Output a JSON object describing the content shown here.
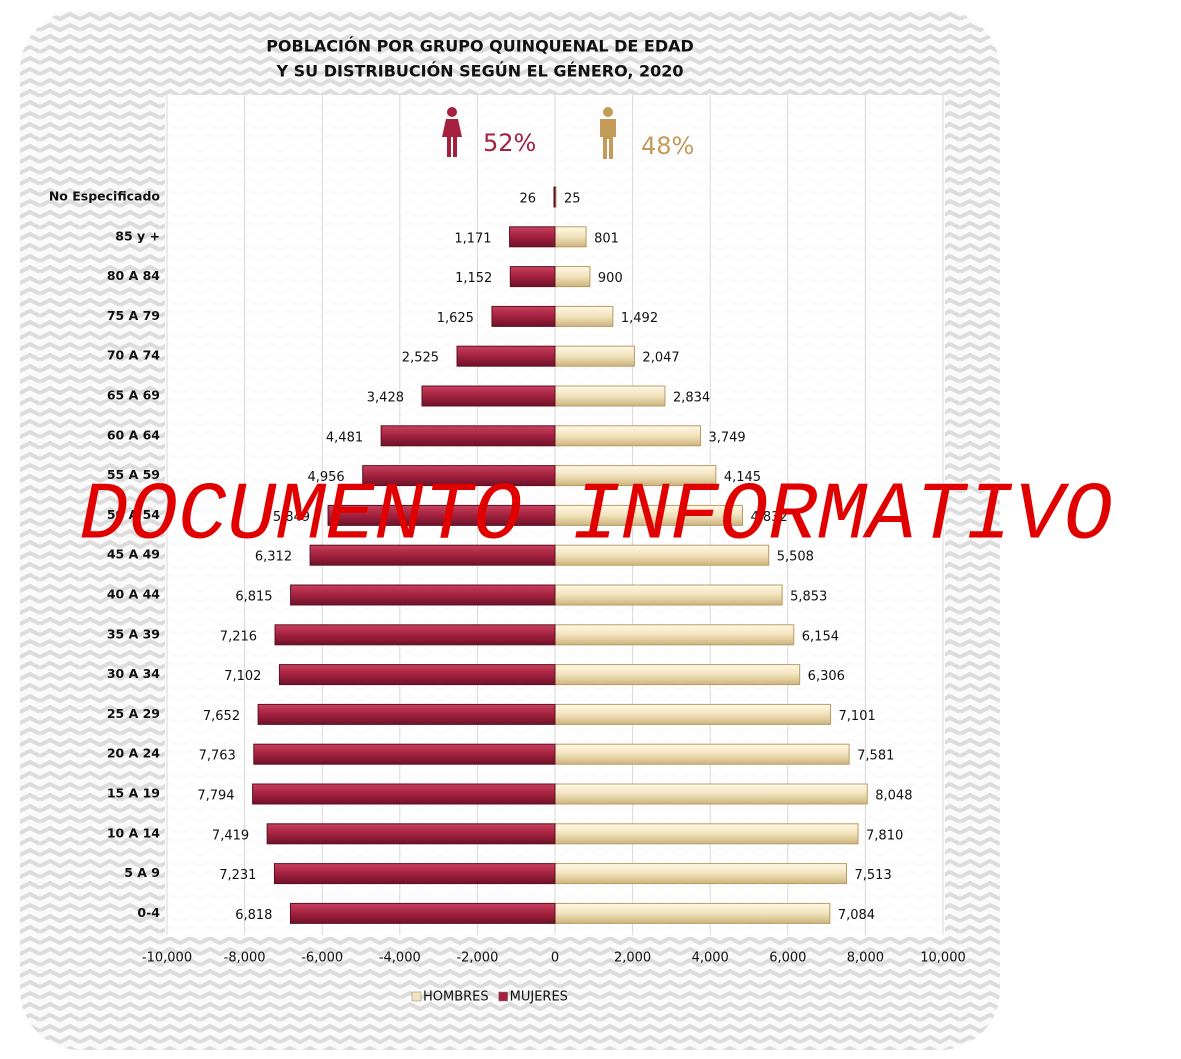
{
  "chart_data": {
    "type": "bar",
    "orientation": "horizontal",
    "title": [
      "POBLACIÓN POR GRUPO QUINQUENAL DE EDAD",
      "Y SU DISTRIBUCIÓN SEGÚN EL GÉNERO, 2020"
    ],
    "annotations": [
      "52%",
      "48%"
    ],
    "watermark": "DOCUMENTO INFORMATIVO",
    "categories": [
      "No Especificado",
      "85 y +",
      "80 A 84",
      "75 A 79",
      "70 A 74",
      "65 A 69",
      "60 A 64",
      "55 A 59",
      "50 A 54",
      "45 A 49",
      "40 A 44",
      "35 A 39",
      "30 A 34",
      "25 A 29",
      "20 A 24",
      "15 A 19",
      "10 A 14",
      "5 A 9",
      "0-4"
    ],
    "series": [
      {
        "name": "HOMBRES",
        "color": "#f1e2bb",
        "values": [
          25,
          801,
          900,
          1492,
          2047,
          2834,
          3749,
          4145,
          4832,
          5508,
          5853,
          6154,
          6306,
          7101,
          7581,
          8048,
          7810,
          7513,
          7084
        ],
        "value_labels": [
          "25",
          "801",
          "900",
          "1,492",
          "2,047",
          "2,834",
          "3,749",
          "4,145",
          "4,832",
          "5,508",
          "5,853",
          "6,154",
          "6,306",
          "7,101",
          "7,581",
          "8,048",
          "7,810",
          "7,513",
          "7,084"
        ]
      },
      {
        "name": "MUJERES",
        "color": "#a3213f",
        "values": [
          -26,
          -1171,
          -1152,
          -1625,
          -2525,
          -3428,
          -4481,
          -4956,
          -5849,
          -6312,
          -6815,
          -7216,
          -7102,
          -7652,
          -7763,
          -7794,
          -7419,
          -7231,
          -6818
        ],
        "value_labels": [
          "26",
          "1,171",
          "1,152",
          "1,625",
          "2,525",
          "3,428",
          "4,481",
          "4,956",
          "5,849",
          "6,312",
          "6,815",
          "7,216",
          "7,102",
          "7,652",
          "7,763",
          "7,794",
          "7,419",
          "7,231",
          "6,818"
        ]
      }
    ],
    "xlim": [
      -10000,
      10000
    ],
    "xticks": [
      {
        "value": -10000,
        "label": "-10,000"
      },
      {
        "value": -8000,
        "label": "-8,000"
      },
      {
        "value": -6000,
        "label": "-6,000"
      },
      {
        "value": -4000,
        "label": "-4,000"
      },
      {
        "value": -2000,
        "label": "-2,000"
      },
      0,
      {
        "value": 2000,
        "label": "2,000"
      },
      {
        "value": 4000,
        "label": "4,000"
      },
      {
        "value": 6000,
        "label": "6,000"
      },
      {
        "value": 8000,
        "label": "8,000"
      },
      {
        "value": 10000,
        "label": "10,000"
      }
    ],
    "grid": true,
    "legend": "bottom"
  }
}
